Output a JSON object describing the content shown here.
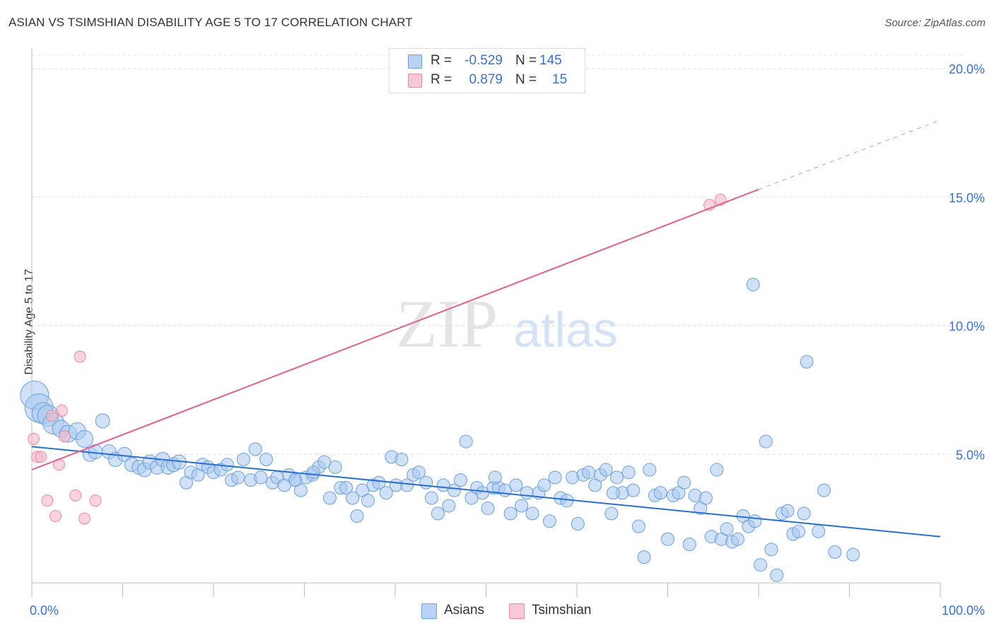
{
  "header": {
    "title": "ASIAN VS TSIMSHIAN DISABILITY AGE 5 TO 17 CORRELATION CHART",
    "source": "Source: ZipAtlas.com"
  },
  "watermark": {
    "zip": "ZIP",
    "atlas": "atlas"
  },
  "legend": {
    "rows": [
      {
        "r_label": "R =",
        "r_value": "-0.529",
        "n_label": "N =",
        "n_value": "145"
      },
      {
        "r_label": "R =",
        "r_value": "0.879",
        "n_label": "N =",
        "n_value": "15"
      }
    ]
  },
  "bottom_legend": {
    "asians": "Asians",
    "tsimshian": "Tsimshian"
  },
  "colors": {
    "asian_fill": "#a9c8f0",
    "asian_stroke": "#6a9fdc",
    "asian_line": "#2a6fd0",
    "tsimshian_fill": "#f5b8c9",
    "tsimshian_stroke": "#e88aa6",
    "tsimshian_line": "#e06090",
    "axis_text": "#3a6fd8",
    "grid": "#dddddd"
  },
  "chart_data": {
    "type": "scatter",
    "title": "ASIAN VS TSIMSHIAN DISABILITY AGE 5 TO 17 CORRELATION CHART",
    "xlabel": "",
    "ylabel": "Disability Age 5 to 17",
    "xlim": [
      0,
      100
    ],
    "ylim": [
      0,
      20
    ],
    "x_tick_labels": [
      "0.0%",
      "100.0%"
    ],
    "y_ticks": [
      5,
      10,
      15,
      20
    ],
    "y_tick_labels": [
      "5.0%",
      "10.0%",
      "15.0%",
      "20.0%"
    ],
    "grid": true,
    "series": [
      {
        "name": "Asians",
        "points": [
          [
            0.3,
            7.3
          ],
          [
            0.8,
            6.8
          ],
          [
            1.2,
            6.6
          ],
          [
            1.8,
            6.5
          ],
          [
            2.4,
            6.2
          ],
          [
            3.2,
            6.0
          ],
          [
            4.0,
            5.8
          ],
          [
            5.0,
            5.9
          ],
          [
            5.8,
            5.6
          ],
          [
            6.4,
            5.0
          ],
          [
            7.0,
            5.1
          ],
          [
            7.8,
            6.3
          ],
          [
            8.5,
            5.1
          ],
          [
            9.2,
            4.8
          ],
          [
            10.2,
            5.0
          ],
          [
            11.0,
            4.6
          ],
          [
            11.8,
            4.5
          ],
          [
            12.4,
            4.4
          ],
          [
            13.0,
            4.7
          ],
          [
            13.8,
            4.5
          ],
          [
            14.4,
            4.8
          ],
          [
            15.0,
            4.5
          ],
          [
            15.6,
            4.6
          ],
          [
            16.2,
            4.7
          ],
          [
            17.0,
            3.9
          ],
          [
            17.5,
            4.3
          ],
          [
            18.3,
            4.2
          ],
          [
            18.8,
            4.6
          ],
          [
            19.4,
            4.5
          ],
          [
            20.0,
            4.3
          ],
          [
            20.8,
            4.4
          ],
          [
            21.5,
            4.6
          ],
          [
            22.0,
            4.0
          ],
          [
            22.7,
            4.1
          ],
          [
            23.3,
            4.8
          ],
          [
            24.1,
            4.0
          ],
          [
            24.6,
            5.2
          ],
          [
            25.2,
            4.1
          ],
          [
            25.8,
            4.8
          ],
          [
            26.5,
            3.9
          ],
          [
            27.0,
            4.1
          ],
          [
            27.8,
            3.8
          ],
          [
            28.3,
            4.2
          ],
          [
            29.0,
            4.0
          ],
          [
            29.6,
            3.6
          ],
          [
            30.2,
            4.1
          ],
          [
            30.9,
            4.2
          ],
          [
            31.6,
            4.5
          ],
          [
            32.2,
            4.7
          ],
          [
            32.8,
            3.3
          ],
          [
            33.4,
            4.5
          ],
          [
            34.0,
            3.7
          ],
          [
            34.6,
            3.7
          ],
          [
            35.3,
            3.3
          ],
          [
            35.8,
            2.6
          ],
          [
            36.4,
            3.6
          ],
          [
            37.0,
            3.2
          ],
          [
            37.6,
            3.8
          ],
          [
            38.2,
            3.9
          ],
          [
            39.0,
            3.5
          ],
          [
            39.6,
            4.9
          ],
          [
            40.1,
            3.8
          ],
          [
            40.7,
            4.8
          ],
          [
            41.3,
            3.8
          ],
          [
            42.0,
            4.2
          ],
          [
            42.6,
            4.3
          ],
          [
            43.4,
            3.9
          ],
          [
            44.0,
            3.3
          ],
          [
            44.7,
            2.7
          ],
          [
            45.3,
            3.8
          ],
          [
            45.9,
            3.0
          ],
          [
            46.5,
            3.6
          ],
          [
            47.2,
            4.0
          ],
          [
            47.8,
            5.5
          ],
          [
            48.4,
            3.3
          ],
          [
            49.0,
            3.7
          ],
          [
            49.6,
            3.5
          ],
          [
            50.2,
            2.9
          ],
          [
            50.8,
            3.7
          ],
          [
            51.4,
            3.7
          ],
          [
            52.1,
            3.6
          ],
          [
            52.7,
            2.7
          ],
          [
            53.3,
            3.8
          ],
          [
            53.9,
            3.0
          ],
          [
            54.5,
            3.5
          ],
          [
            55.1,
            2.7
          ],
          [
            55.8,
            3.5
          ],
          [
            56.4,
            3.8
          ],
          [
            57.0,
            2.4
          ],
          [
            57.6,
            4.1
          ],
          [
            58.2,
            3.3
          ],
          [
            58.9,
            3.2
          ],
          [
            59.5,
            4.1
          ],
          [
            60.1,
            2.3
          ],
          [
            60.7,
            4.2
          ],
          [
            61.3,
            4.3
          ],
          [
            62.0,
            3.8
          ],
          [
            62.6,
            4.2
          ],
          [
            63.2,
            4.4
          ],
          [
            63.8,
            2.7
          ],
          [
            64.4,
            4.1
          ],
          [
            65.0,
            3.5
          ],
          [
            65.7,
            4.3
          ],
          [
            66.2,
            3.6
          ],
          [
            66.8,
            2.2
          ],
          [
            67.4,
            1.0
          ],
          [
            68.0,
            4.4
          ],
          [
            68.6,
            3.4
          ],
          [
            69.2,
            3.5
          ],
          [
            70.0,
            1.7
          ],
          [
            70.6,
            3.4
          ],
          [
            71.2,
            3.5
          ],
          [
            71.8,
            3.9
          ],
          [
            72.4,
            1.5
          ],
          [
            73.0,
            3.4
          ],
          [
            73.6,
            2.9
          ],
          [
            74.2,
            3.3
          ],
          [
            74.8,
            1.8
          ],
          [
            75.4,
            4.4
          ],
          [
            75.9,
            1.7
          ],
          [
            76.5,
            2.1
          ],
          [
            77.1,
            1.6
          ],
          [
            77.7,
            1.7
          ],
          [
            78.3,
            2.6
          ],
          [
            78.9,
            2.2
          ],
          [
            79.6,
            2.4
          ],
          [
            80.2,
            0.7
          ],
          [
            80.8,
            5.5
          ],
          [
            81.4,
            1.3
          ],
          [
            82.0,
            0.3
          ],
          [
            82.6,
            2.7
          ],
          [
            83.2,
            2.8
          ],
          [
            83.8,
            1.9
          ],
          [
            84.4,
            2.0
          ],
          [
            85.0,
            2.7
          ],
          [
            86.6,
            2.0
          ],
          [
            87.2,
            3.6
          ],
          [
            88.4,
            1.2
          ],
          [
            90.4,
            1.1
          ],
          [
            79.4,
            11.6
          ],
          [
            85.3,
            8.6
          ],
          [
            29.0,
            4.0
          ],
          [
            31.0,
            4.3
          ],
          [
            51.0,
            4.1
          ],
          [
            64.0,
            3.5
          ]
        ]
      },
      {
        "name": "Tsimshian",
        "points": [
          [
            0.2,
            5.6
          ],
          [
            0.6,
            4.9
          ],
          [
            1.0,
            4.9
          ],
          [
            1.7,
            3.2
          ],
          [
            2.2,
            6.5
          ],
          [
            2.6,
            2.6
          ],
          [
            3.0,
            4.6
          ],
          [
            3.3,
            6.7
          ],
          [
            3.6,
            5.7
          ],
          [
            4.8,
            3.4
          ],
          [
            5.3,
            8.8
          ],
          [
            5.8,
            2.5
          ],
          [
            7.0,
            3.2
          ],
          [
            74.6,
            14.7
          ],
          [
            75.8,
            14.9
          ]
        ]
      }
    ],
    "trend_lines": [
      {
        "series": "Asians",
        "x": [
          0,
          100
        ],
        "y": [
          5.3,
          1.8
        ],
        "style": "solid"
      },
      {
        "series": "Tsimshian",
        "x": [
          0,
          80
        ],
        "y": [
          4.4,
          15.3
        ],
        "style": "solid"
      },
      {
        "series": "Tsimshian",
        "x": [
          80,
          100
        ],
        "y": [
          15.3,
          18.0
        ],
        "style": "dashed"
      }
    ],
    "legend_position": "top-center"
  }
}
